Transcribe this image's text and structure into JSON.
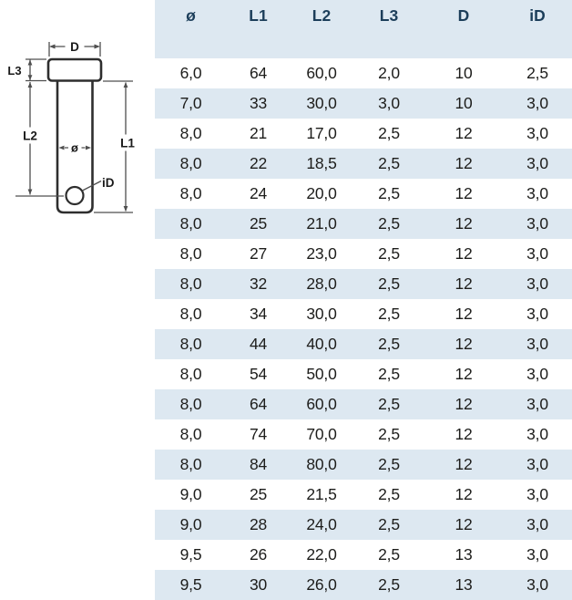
{
  "drawing": {
    "description": "clevis-pin technical drawing with dimension labels",
    "labels": {
      "d": "D",
      "l3": "L3",
      "l2": "L2",
      "diameter": "ø",
      "l1": "L1",
      "id": "iD"
    }
  },
  "table": {
    "headers": [
      "ø",
      "L1",
      "L2",
      "L3",
      "D",
      "iD"
    ],
    "rows": [
      [
        "6,0",
        "64",
        "60,0",
        "2,0",
        "10",
        "2,5"
      ],
      [
        "7,0",
        "33",
        "30,0",
        "3,0",
        "10",
        "3,0"
      ],
      [
        "8,0",
        "21",
        "17,0",
        "2,5",
        "12",
        "3,0"
      ],
      [
        "8,0",
        "22",
        "18,5",
        "2,5",
        "12",
        "3,0"
      ],
      [
        "8,0",
        "24",
        "20,0",
        "2,5",
        "12",
        "3,0"
      ],
      [
        "8,0",
        "25",
        "21,0",
        "2,5",
        "12",
        "3,0"
      ],
      [
        "8,0",
        "27",
        "23,0",
        "2,5",
        "12",
        "3,0"
      ],
      [
        "8,0",
        "32",
        "28,0",
        "2,5",
        "12",
        "3,0"
      ],
      [
        "8,0",
        "34",
        "30,0",
        "2,5",
        "12",
        "3,0"
      ],
      [
        "8,0",
        "44",
        "40,0",
        "2,5",
        "12",
        "3,0"
      ],
      [
        "8,0",
        "54",
        "50,0",
        "2,5",
        "12",
        "3,0"
      ],
      [
        "8,0",
        "64",
        "60,0",
        "2,5",
        "12",
        "3,0"
      ],
      [
        "8,0",
        "74",
        "70,0",
        "2,5",
        "12",
        "3,0"
      ],
      [
        "8,0",
        "84",
        "80,0",
        "2,5",
        "12",
        "3,0"
      ],
      [
        "9,0",
        "25",
        "21,5",
        "2,5",
        "12",
        "3,0"
      ],
      [
        "9,0",
        "28",
        "24,0",
        "2,5",
        "12",
        "3,0"
      ],
      [
        "9,5",
        "26",
        "22,0",
        "2,5",
        "13",
        "3,0"
      ],
      [
        "9,5",
        "30",
        "26,0",
        "2,5",
        "13",
        "3,0"
      ]
    ]
  },
  "colors": {
    "stripe": "#dde8f1",
    "header_text": "#1c3e5a",
    "cell_text": "#1d1d1b",
    "line": "#2e2e2e",
    "dimension_line": "#4f4f4f"
  }
}
